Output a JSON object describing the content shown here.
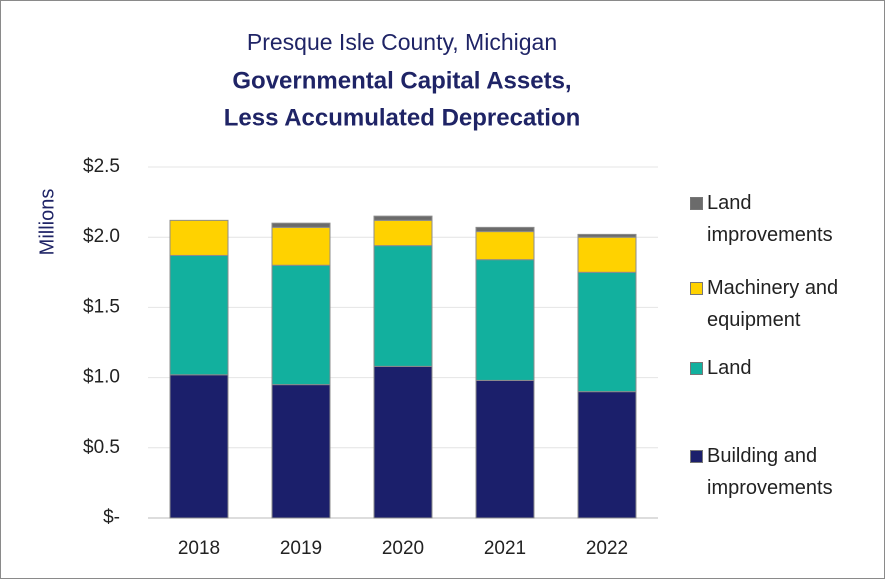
{
  "chart_data": {
    "type": "stacked_bar",
    "subtitle": "Presque Isle County, Michigan",
    "title": [
      "Governmental Capital Assets,",
      "Less Accumulated Deprecation"
    ],
    "y_label": "Millions",
    "categories": [
      "2018",
      "2019",
      "2020",
      "2021",
      "2022"
    ],
    "series": [
      {
        "name": "Building and improvements",
        "color": "#1b1f6b",
        "values": [
          1.02,
          0.95,
          1.08,
          0.98,
          0.9
        ]
      },
      {
        "name": "Land",
        "color": "#12b09e",
        "values": [
          0.85,
          0.85,
          0.86,
          0.86,
          0.85
        ]
      },
      {
        "name": "Machinery and equipment",
        "color": "#ffd200",
        "values": [
          0.25,
          0.27,
          0.18,
          0.2,
          0.25
        ]
      },
      {
        "name": "Land improvements",
        "color": "#6b6b6b",
        "values": [
          0,
          0.03,
          0.03,
          0.03,
          0.02
        ]
      }
    ],
    "ylim": [
      0,
      2.5
    ],
    "yticks": [
      {
        "value": 0,
        "label": "$-"
      },
      {
        "value": 0.5,
        "label": "$0.5"
      },
      {
        "value": 1,
        "label": "$1.0"
      },
      {
        "value": 1.5,
        "label": "$1.5"
      },
      {
        "value": 2,
        "label": "$2.0"
      },
      {
        "value": 2.5,
        "label": "$2.5"
      }
    ],
    "grid": true
  }
}
